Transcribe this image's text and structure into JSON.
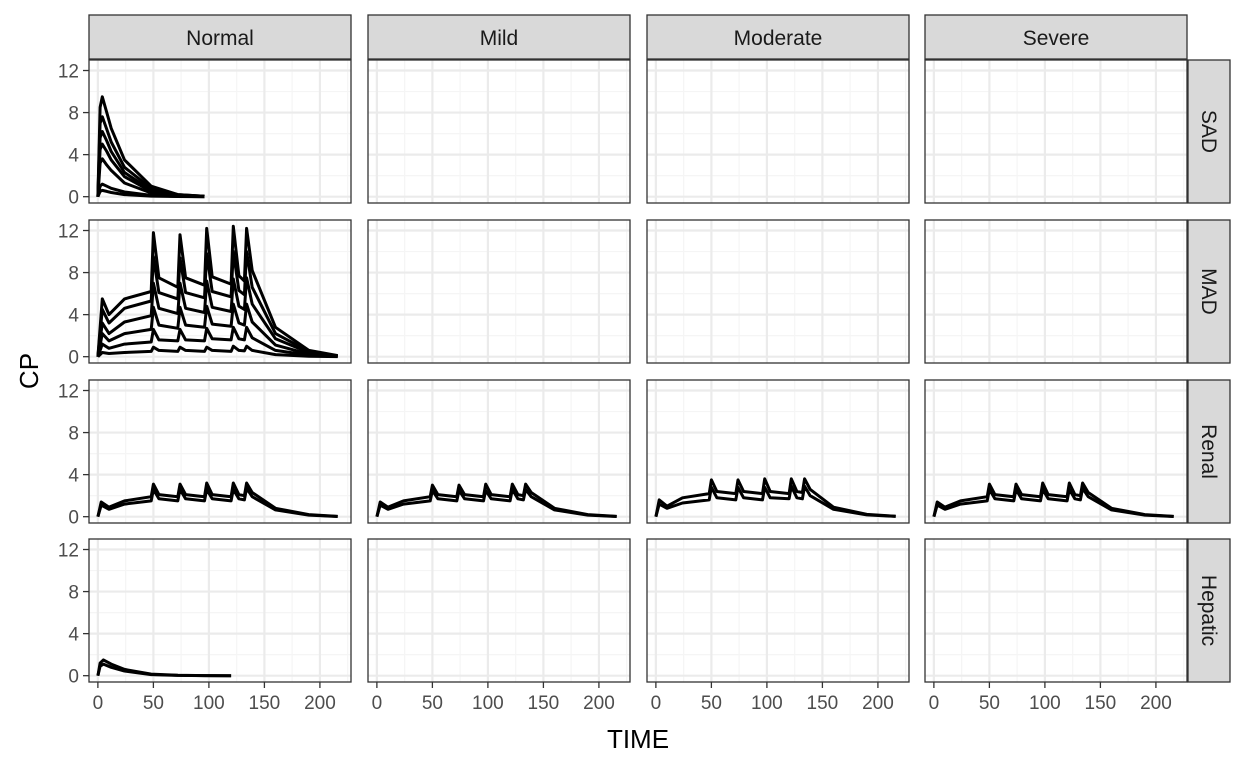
{
  "chart_data": {
    "type": "line",
    "xlabel": "TIME",
    "ylabel": "CP",
    "xlim": [
      -8,
      228
    ],
    "ylim": [
      -0.6,
      13
    ],
    "x_ticks": [
      0,
      50,
      100,
      150,
      200
    ],
    "y_ticks": [
      0,
      4,
      8,
      12
    ],
    "columns": [
      "Normal",
      "Mild",
      "Moderate",
      "Severe"
    ],
    "rows": [
      "SAD",
      "MAD",
      "Renal",
      "Hepatic"
    ],
    "grid": true,
    "legend": "none",
    "colors": {
      "line": "#000000",
      "strip": "#d9d9d9",
      "strip_border": "#333333",
      "grid_major": "#ebebeb",
      "grid_minor": "#f5f5f5",
      "text": "#4d4d4d"
    },
    "panels": [
      {
        "row": "SAD",
        "column": "Normal",
        "series": [
          {
            "x": [
              0,
              2,
              4,
              8,
              12,
              24,
              48,
              72,
              96
            ],
            "y": [
              0,
              8.5,
              9.5,
              8,
              6.5,
              3.5,
              1,
              0.2,
              0.05
            ]
          },
          {
            "x": [
              0,
              2,
              4,
              8,
              12,
              24,
              48,
              72,
              96
            ],
            "y": [
              0,
              7,
              7.6,
              6.4,
              5.2,
              2.8,
              0.8,
              0.2,
              0.05
            ]
          },
          {
            "x": [
              0,
              2,
              4,
              8,
              12,
              24,
              48,
              72,
              96
            ],
            "y": [
              0,
              5.6,
              6.2,
              5.3,
              4.3,
              2.3,
              0.6,
              0.15,
              0.03
            ]
          },
          {
            "x": [
              0,
              2,
              4,
              8,
              12,
              24,
              48,
              72,
              96
            ],
            "y": [
              0,
              4.5,
              5,
              4.3,
              3.5,
              1.9,
              0.5,
              0.12,
              0.03
            ]
          },
          {
            "x": [
              0,
              2,
              4,
              8,
              12,
              24,
              48,
              72,
              96
            ],
            "y": [
              0,
              3.2,
              3.6,
              3,
              2.5,
              1.3,
              0.35,
              0.08,
              0.02
            ]
          },
          {
            "x": [
              0,
              2,
              4,
              8,
              12,
              24,
              48,
              72,
              96
            ],
            "y": [
              0,
              1,
              1.2,
              1,
              0.8,
              0.45,
              0.12,
              0.03,
              0.01
            ]
          },
          {
            "x": [
              0,
              2,
              4,
              8,
              12,
              24,
              48,
              72,
              96
            ],
            "y": [
              0,
              0.5,
              0.6,
              0.5,
              0.4,
              0.2,
              0.06,
              0.02,
              0
            ]
          }
        ]
      },
      {
        "row": "MAD",
        "column": "Normal",
        "series": [
          {
            "x": [
              0,
              4,
              10,
              24,
              48,
              50,
              55,
              72,
              74,
              79,
              96,
              98,
              103,
              120,
              122,
              127,
              132,
              134,
              139,
              160,
              190,
              216
            ],
            "y": [
              0,
              5.5,
              4,
              5.5,
              6.2,
              11.8,
              7.5,
              6.6,
              11.6,
              7.5,
              6.8,
              12.2,
              7.6,
              6.9,
              12.4,
              7.7,
              7.2,
              12.2,
              8.2,
              2.8,
              0.6,
              0.1
            ]
          },
          {
            "x": [
              0,
              4,
              10,
              24,
              48,
              50,
              55,
              72,
              74,
              79,
              96,
              98,
              103,
              120,
              122,
              127,
              132,
              134,
              139,
              160,
              190,
              216
            ],
            "y": [
              0,
              4.5,
              3.2,
              4.6,
              5.3,
              9.5,
              6.1,
              5.5,
              9.4,
              6.1,
              5.6,
              9.8,
              6.2,
              5.7,
              10,
              6.3,
              5.9,
              10,
              6.6,
              2.2,
              0.5,
              0.08
            ]
          },
          {
            "x": [
              0,
              4,
              10,
              24,
              48,
              50,
              55,
              72,
              74,
              79,
              96,
              98,
              103,
              120,
              122,
              127,
              132,
              134,
              139,
              160,
              190,
              216
            ],
            "y": [
              0,
              3.2,
              2.2,
              3.3,
              3.9,
              7,
              4.6,
              4.1,
              7,
              4.6,
              4.2,
              7.2,
              4.7,
              4.3,
              7.4,
              4.8,
              4.5,
              7.5,
              5,
              1.7,
              0.4,
              0.06
            ]
          },
          {
            "x": [
              0,
              4,
              10,
              24,
              48,
              50,
              55,
              72,
              74,
              79,
              96,
              98,
              103,
              120,
              122,
              127,
              132,
              134,
              139,
              160,
              190,
              216
            ],
            "y": [
              0,
              2.2,
              1.5,
              2.2,
              2.6,
              4.7,
              3,
              2.7,
              4.7,
              3,
              2.8,
              4.8,
              3.1,
              2.9,
              5,
              3.2,
              3,
              5,
              3.3,
              1.1,
              0.25,
              0.04
            ]
          },
          {
            "x": [
              0,
              4,
              10,
              24,
              48,
              50,
              55,
              72,
              74,
              79,
              96,
              98,
              103,
              120,
              122,
              127,
              132,
              134,
              139,
              160,
              190,
              216
            ],
            "y": [
              0,
              1.2,
              0.8,
              1.2,
              1.4,
              2.6,
              1.6,
              1.5,
              2.6,
              1.6,
              1.5,
              2.7,
              1.7,
              1.6,
              2.8,
              1.7,
              1.6,
              2.8,
              1.8,
              0.6,
              0.15,
              0.02
            ]
          },
          {
            "x": [
              0,
              4,
              10,
              24,
              48,
              50,
              55,
              72,
              74,
              79,
              96,
              98,
              103,
              120,
              122,
              127,
              132,
              134,
              139,
              160,
              190,
              216
            ],
            "y": [
              0,
              0.4,
              0.3,
              0.4,
              0.5,
              0.9,
              0.6,
              0.5,
              0.9,
              0.6,
              0.5,
              0.9,
              0.6,
              0.5,
              1,
              0.6,
              0.55,
              1,
              0.6,
              0.2,
              0.05,
              0.01
            ]
          }
        ]
      },
      {
        "row": "Renal",
        "column": "Normal",
        "series": [
          {
            "x": [
              0,
              3,
              10,
              24,
              48,
              50,
              55,
              72,
              74,
              79,
              96,
              98,
              103,
              120,
              122,
              127,
              132,
              134,
              139,
              160,
              190,
              216
            ],
            "y": [
              0,
              1.4,
              0.9,
              1.5,
              1.9,
              3.1,
              2.1,
              1.9,
              3.1,
              2.1,
              1.9,
              3.2,
              2.1,
              1.9,
              3.2,
              2.1,
              2,
              3.2,
              2.3,
              0.8,
              0.2,
              0.03
            ]
          },
          {
            "x": [
              0,
              3,
              10,
              24,
              48,
              50,
              55,
              72,
              74,
              79,
              96,
              98,
              103,
              120,
              122,
              127,
              132,
              134,
              139,
              160,
              190,
              216
            ],
            "y": [
              0,
              1.1,
              0.7,
              1.2,
              1.5,
              2.6,
              1.7,
              1.5,
              2.6,
              1.7,
              1.5,
              2.6,
              1.7,
              1.5,
              2.6,
              1.7,
              1.6,
              2.7,
              1.9,
              0.65,
              0.15,
              0.02
            ]
          }
        ]
      },
      {
        "row": "Renal",
        "column": "Mild",
        "series": [
          {
            "x": [
              0,
              3,
              10,
              24,
              48,
              50,
              55,
              72,
              74,
              79,
              96,
              98,
              103,
              120,
              122,
              127,
              132,
              134,
              139,
              160,
              190,
              216
            ],
            "y": [
              0,
              1.4,
              0.9,
              1.5,
              1.9,
              3,
              2.1,
              1.9,
              3,
              2.1,
              1.9,
              3.1,
              2.1,
              1.9,
              3.1,
              2.1,
              2,
              3.1,
              2.3,
              0.8,
              0.2,
              0.03
            ]
          },
          {
            "x": [
              0,
              3,
              10,
              24,
              48,
              50,
              55,
              72,
              74,
              79,
              96,
              98,
              103,
              120,
              122,
              127,
              132,
              134,
              139,
              160,
              190,
              216
            ],
            "y": [
              0,
              1.1,
              0.7,
              1.2,
              1.5,
              2.5,
              1.7,
              1.5,
              2.5,
              1.7,
              1.5,
              2.5,
              1.7,
              1.5,
              2.6,
              1.7,
              1.6,
              2.6,
              1.9,
              0.65,
              0.15,
              0.02
            ]
          }
        ]
      },
      {
        "row": "Renal",
        "column": "Moderate",
        "series": [
          {
            "x": [
              0,
              3,
              10,
              24,
              48,
              50,
              55,
              72,
              74,
              79,
              96,
              98,
              103,
              120,
              122,
              127,
              132,
              134,
              139,
              160,
              190,
              216
            ],
            "y": [
              0,
              1.6,
              1,
              1.8,
              2.2,
              3.5,
              2.4,
              2.2,
              3.5,
              2.4,
              2.2,
              3.6,
              2.4,
              2.2,
              3.6,
              2.4,
              2.3,
              3.6,
              2.6,
              0.9,
              0.22,
              0.04
            ]
          },
          {
            "x": [
              0,
              3,
              10,
              24,
              48,
              50,
              55,
              72,
              74,
              79,
              96,
              98,
              103,
              120,
              122,
              127,
              132,
              134,
              139,
              160,
              190,
              216
            ],
            "y": [
              0,
              1.2,
              0.8,
              1.3,
              1.6,
              2.8,
              1.8,
              1.6,
              2.8,
              1.8,
              1.6,
              2.8,
              1.8,
              1.7,
              2.9,
              1.8,
              1.7,
              2.9,
              2,
              0.7,
              0.17,
              0.03
            ]
          }
        ]
      },
      {
        "row": "Renal",
        "column": "Severe",
        "series": [
          {
            "x": [
              0,
              3,
              10,
              24,
              48,
              50,
              55,
              72,
              74,
              79,
              96,
              98,
              103,
              120,
              122,
              127,
              132,
              134,
              139,
              160,
              190,
              216
            ],
            "y": [
              0,
              1.4,
              0.9,
              1.5,
              1.9,
              3.1,
              2.1,
              1.9,
              3.1,
              2.1,
              1.9,
              3.2,
              2.1,
              1.9,
              3.2,
              2.1,
              2,
              3.2,
              2.3,
              0.8,
              0.2,
              0.03
            ]
          },
          {
            "x": [
              0,
              3,
              10,
              24,
              48,
              50,
              55,
              72,
              74,
              79,
              96,
              98,
              103,
              120,
              122,
              127,
              132,
              134,
              139,
              160,
              190,
              216
            ],
            "y": [
              0,
              1.1,
              0.7,
              1.2,
              1.5,
              2.6,
              1.7,
              1.5,
              2.6,
              1.7,
              1.5,
              2.6,
              1.7,
              1.5,
              2.6,
              1.7,
              1.6,
              2.7,
              1.9,
              0.65,
              0.15,
              0.02
            ]
          }
        ]
      },
      {
        "row": "Hepatic",
        "column": "Normal",
        "series": [
          {
            "x": [
              0,
              2,
              5,
              12,
              24,
              48,
              72,
              96,
              120
            ],
            "y": [
              0,
              1.2,
              1.5,
              1.1,
              0.6,
              0.15,
              0.04,
              0.01,
              0
            ]
          },
          {
            "x": [
              0,
              2,
              5,
              12,
              24,
              48,
              72,
              96,
              120
            ],
            "y": [
              0,
              0.9,
              1.1,
              0.8,
              0.45,
              0.1,
              0.03,
              0.01,
              0
            ]
          }
        ]
      }
    ]
  }
}
